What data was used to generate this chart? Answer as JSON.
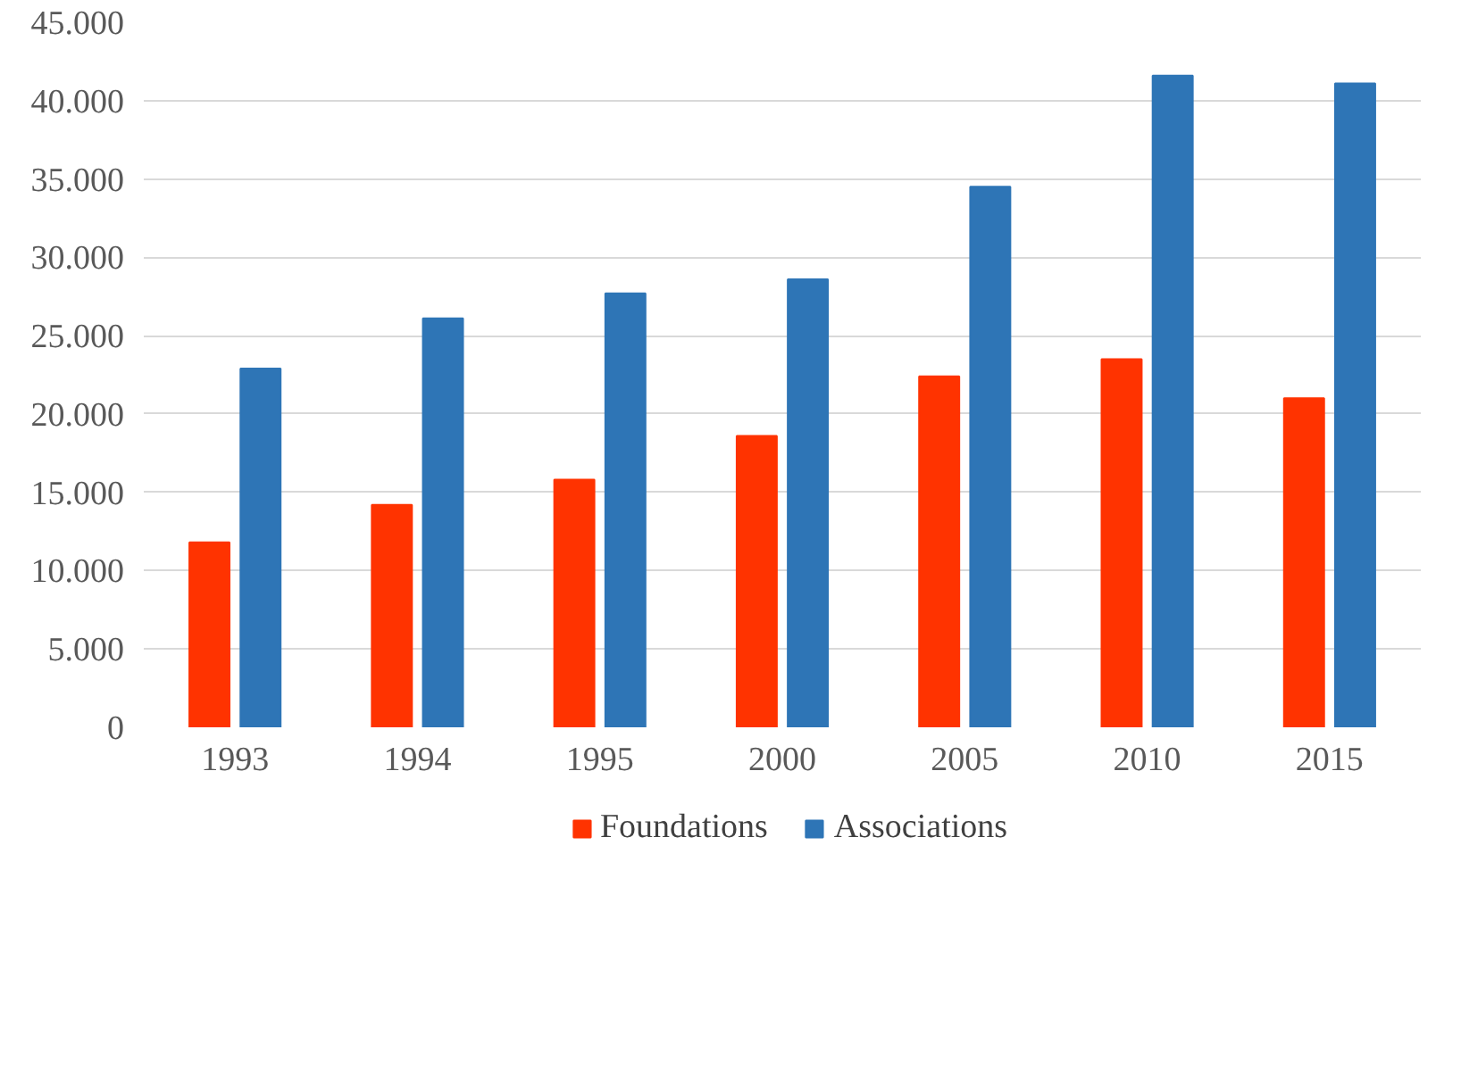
{
  "chart_data": {
    "type": "bar",
    "categories": [
      "1993",
      "1994",
      "1995",
      "2000",
      "2005",
      "2010",
      "2015"
    ],
    "series": [
      {
        "name": "Foundations",
        "color": "#ff3300",
        "values": [
          11800,
          14200,
          15800,
          18600,
          22400,
          23500,
          21000
        ]
      },
      {
        "name": "Associations",
        "color": "#2e75b6",
        "values": [
          22900,
          26100,
          27700,
          28600,
          34500,
          41600,
          41100
        ]
      }
    ],
    "ylim": [
      0,
      45000
    ],
    "yticks": [
      0,
      {
        "value": 5000,
        "label": "5.000"
      },
      {
        "value": 10000,
        "label": "10.000"
      },
      {
        "value": 15000,
        "label": "15.000"
      },
      {
        "value": 20000,
        "label": "20.000"
      },
      {
        "value": 25000,
        "label": "25.000"
      },
      {
        "value": 30000,
        "label": "30.000"
      },
      {
        "value": 35000,
        "label": "35.000"
      },
      {
        "value": 40000,
        "label": "40.000"
      },
      {
        "value": 45000,
        "label": "45.000"
      }
    ],
    "grid": "y",
    "legend": "bottom"
  }
}
